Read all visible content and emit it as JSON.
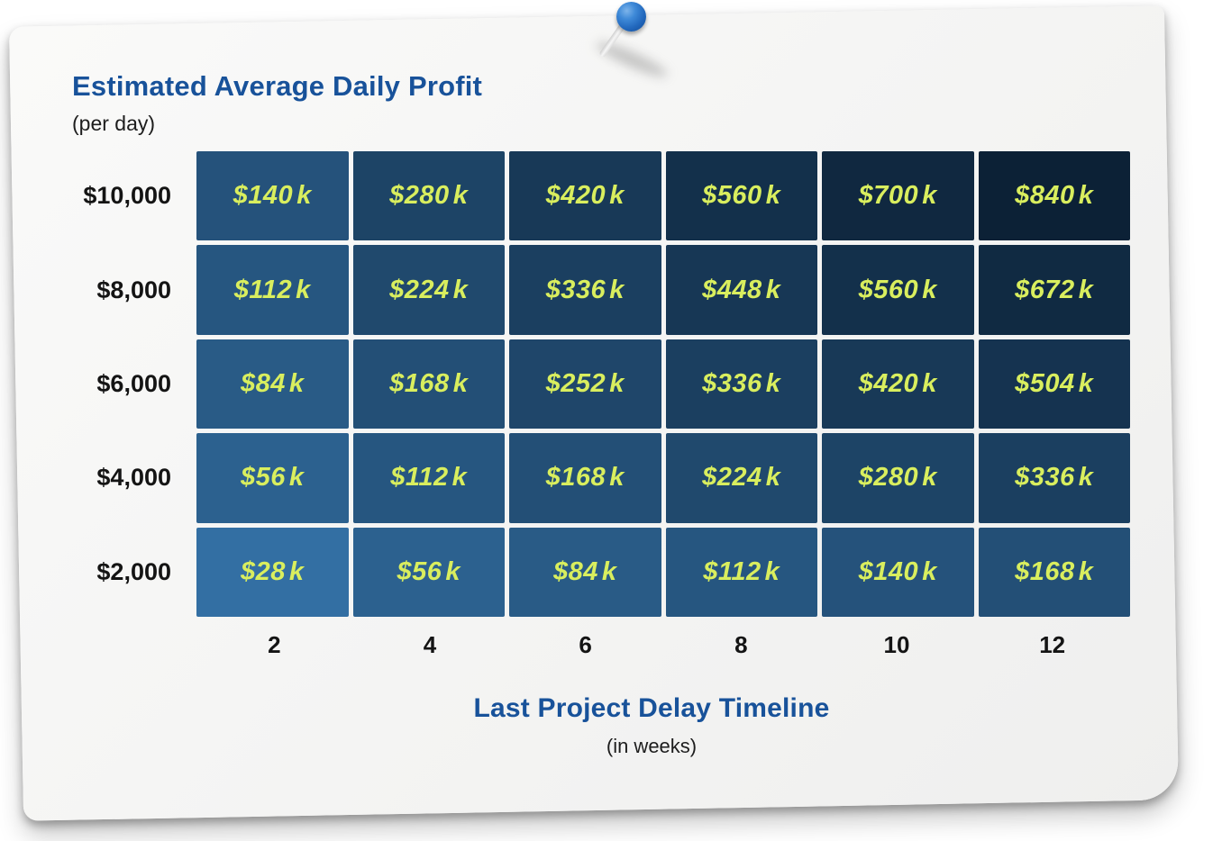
{
  "header": {
    "title": "Estimated Average Daily Profit",
    "subtitle": "(per day)"
  },
  "footer": {
    "title": "Last Project Delay Timeline",
    "subtitle": "(in weeks)"
  },
  "chart_data": {
    "type": "heatmap",
    "title": "Estimated Average Daily Profit (per day) vs Last Project Delay Timeline (in weeks)",
    "y_axis": {
      "label": "Estimated Average Daily Profit (per day)",
      "categories": [
        "$10,000",
        "$8,000",
        "$6,000",
        "$4,000",
        "$2,000"
      ]
    },
    "x_axis": {
      "label": "Last Project Delay Timeline (in weeks)",
      "categories": [
        "2",
        "4",
        "6",
        "8",
        "10",
        "12"
      ]
    },
    "value_prefix": "$",
    "value_suffix": "k",
    "matrix": [
      [
        140,
        280,
        420,
        560,
        700,
        840
      ],
      [
        112,
        224,
        336,
        448,
        560,
        672
      ],
      [
        84,
        168,
        252,
        336,
        420,
        504
      ],
      [
        56,
        112,
        168,
        224,
        280,
        336
      ],
      [
        28,
        56,
        84,
        112,
        140,
        168
      ]
    ],
    "color_scale": {
      "light": "#336fa3",
      "dark": "#0c2136",
      "min": 28,
      "max": 840,
      "interpolation": "sqrt"
    },
    "cell_text_color": "#d9ee5e",
    "legend": "none",
    "grid_gap_shows_paper": true
  },
  "colors": {
    "title_blue": "#18529a",
    "axis_text": "#141414",
    "paper": "#f5f5f4",
    "pin_blue": "#2268bd"
  }
}
